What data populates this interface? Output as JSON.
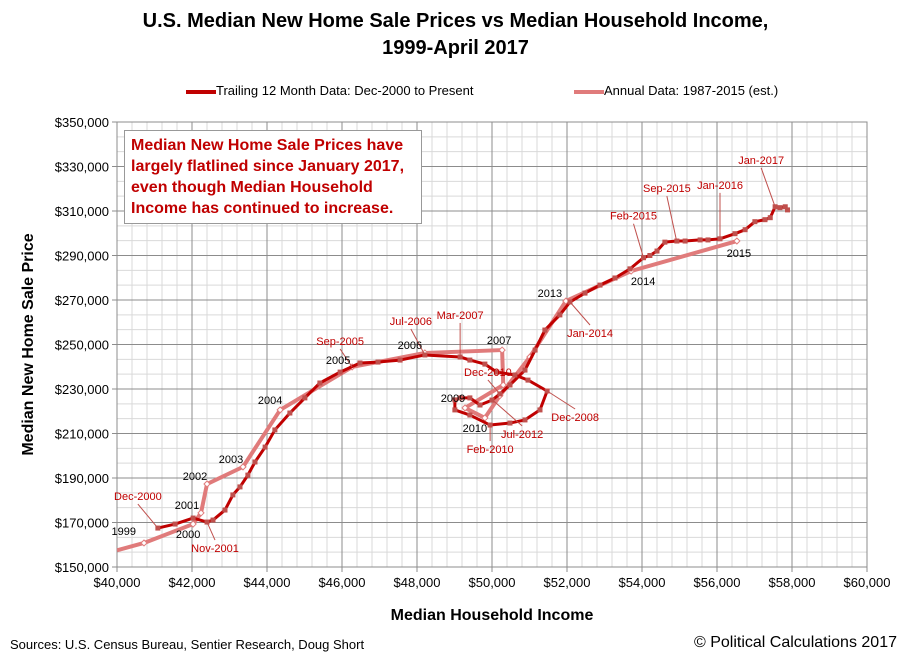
{
  "chart_data": {
    "type": "line",
    "title": "U.S. Median New Home Sale Prices vs Median Household Income, 1999-April 2017",
    "title_lines": [
      "U.S. Median New Home Sale Prices vs Median Household Income,",
      "1999-April 2017"
    ],
    "xlabel": "Median Household Income",
    "ylabel": "Median New Home Sale Price",
    "xlim": [
      40000,
      60000
    ],
    "ylim": [
      150000,
      350000
    ],
    "xticks": [
      "$40,000",
      "$42,000",
      "$44,000",
      "$46,000",
      "$48,000",
      "$50,000",
      "$52,000",
      "$54,000",
      "$56,000",
      "$58,000",
      "$60,000"
    ],
    "yticks": [
      "$150,000",
      "$170,000",
      "$190,000",
      "$210,000",
      "$230,000",
      "$250,000",
      "$270,000",
      "$290,000",
      "$310,000",
      "$330,000",
      "$350,000"
    ],
    "grid": true,
    "legend_position": "top",
    "series": [
      {
        "name": "Trailing 12 Month Data: Dec-2000 to Present",
        "color": "#c00000",
        "x": [
          41090,
          41550,
          42030,
          42400,
          42560,
          42880,
          43090,
          43280,
          43490,
          43680,
          43950,
          44210,
          44610,
          45010,
          45410,
          45950,
          46480,
          46960,
          47550,
          48210,
          49150,
          49410,
          49810,
          50130,
          50610,
          50960,
          51470,
          51280,
          50880,
          50480,
          49950,
          49410,
          49010,
          49010,
          49150,
          49410,
          49680,
          50000,
          50210,
          50480,
          50880,
          51150,
          51410,
          51810,
          52080,
          52480,
          52880,
          53280,
          53680,
          54040,
          54210,
          54400,
          54610,
          54930,
          55150,
          55550,
          55760,
          56080,
          56480,
          56750,
          57010,
          57280,
          57420,
          57550,
          57680,
          57820,
          57880
        ],
        "y": [
          167500,
          169300,
          172000,
          170200,
          171100,
          175600,
          182400,
          186000,
          191300,
          197200,
          203900,
          211600,
          219200,
          226000,
          232700,
          237600,
          241700,
          242100,
          243000,
          245300,
          244400,
          243000,
          241200,
          237600,
          236300,
          234000,
          229100,
          220600,
          216100,
          214700,
          213800,
          218300,
          220600,
          225100,
          226000,
          226000,
          222800,
          225000,
          227800,
          231800,
          238500,
          247500,
          256500,
          263300,
          269100,
          273100,
          276700,
          279900,
          284000,
          289000,
          290000,
          292000,
          296000,
          296500,
          296500,
          297000,
          297000,
          297500,
          299800,
          301600,
          305200,
          306100,
          307000,
          311900,
          311500,
          311900,
          310500
        ]
      },
      {
        "name": "Annual Data: 1987-2015 (est.)",
        "color": "#e07b7b",
        "x": [
          40000,
          40720,
          42030,
          42240,
          42400,
          43360,
          44350,
          46270,
          48210,
          50270,
          50300,
          49280,
          49810,
          50210,
          51010,
          51970,
          53710,
          56530
        ],
        "y": [
          157500,
          160800,
          169300,
          174300,
          187300,
          195000,
          220600,
          239900,
          246200,
          247500,
          231800,
          221500,
          217000,
          227000,
          244400,
          269500,
          283000,
          296500
        ]
      }
    ],
    "annotations": [
      {
        "text": "Dec-2000",
        "x": 41090,
        "y": 167500,
        "color": "#c00000"
      },
      {
        "text": "Nov-2001",
        "x": 42400,
        "y": 170200,
        "color": "#c00000"
      },
      {
        "text": "Sep-2005",
        "x": 46270,
        "y": 239900,
        "color": "#c00000"
      },
      {
        "text": "Jul-2006",
        "x": 48210,
        "y": 245300,
        "color": "#c00000"
      },
      {
        "text": "Mar-2007",
        "x": 49150,
        "y": 244400,
        "color": "#c00000"
      },
      {
        "text": "Dec-2008",
        "x": 51470,
        "y": 229100,
        "color": "#c00000"
      },
      {
        "text": "Feb-2010",
        "x": 49950,
        "y": 213800,
        "color": "#c00000"
      },
      {
        "text": "Dec-2010",
        "x": 50210,
        "y": 227800,
        "color": "#c00000"
      },
      {
        "text": "Jul-2012",
        "x": 49950,
        "y": 226000,
        "color": "#c00000"
      },
      {
        "text": "Jan-2014",
        "x": 52080,
        "y": 269100,
        "color": "#c00000"
      },
      {
        "text": "Feb-2015",
        "x": 54040,
        "y": 289000,
        "color": "#c00000"
      },
      {
        "text": "Sep-2015",
        "x": 54930,
        "y": 296000,
        "color": "#c00000"
      },
      {
        "text": "Jan-2016",
        "x": 56080,
        "y": 297500,
        "color": "#c00000"
      },
      {
        "text": "Jan-2017",
        "x": 57550,
        "y": 311900,
        "color": "#c00000"
      },
      {
        "text": "1999",
        "x": 40720,
        "y": 160800,
        "color": "#000000"
      },
      {
        "text": "2000",
        "x": 42030,
        "y": 169300,
        "color": "#000000"
      },
      {
        "text": "2001",
        "x": 42240,
        "y": 174300,
        "color": "#000000"
      },
      {
        "text": "2002",
        "x": 42400,
        "y": 187300,
        "color": "#000000"
      },
      {
        "text": "2003",
        "x": 43360,
        "y": 195000,
        "color": "#000000"
      },
      {
        "text": "2004",
        "x": 44350,
        "y": 220600,
        "color": "#000000"
      },
      {
        "text": "2005",
        "x": 46270,
        "y": 239900,
        "color": "#000000"
      },
      {
        "text": "2006",
        "x": 48210,
        "y": 246200,
        "color": "#000000"
      },
      {
        "text": "2007",
        "x": 50270,
        "y": 247500,
        "color": "#000000"
      },
      {
        "text": "2009",
        "x": 49280,
        "y": 221500,
        "color": "#000000"
      },
      {
        "text": "2010",
        "x": 49810,
        "y": 217000,
        "color": "#000000"
      },
      {
        "text": "2013",
        "x": 51970,
        "y": 269500,
        "color": "#000000"
      },
      {
        "text": "2014",
        "x": 53710,
        "y": 283000,
        "color": "#000000"
      },
      {
        "text": "2015",
        "x": 56530,
        "y": 296500,
        "color": "#000000"
      }
    ],
    "note": "Median New Home Sale Prices have largely flatlined since January 2017, even though Median Household Income has continued to increase."
  },
  "footer": {
    "sources": "Sources: U.S. Census Bureau, Sentier Research, Doug Short",
    "copyright": "© Political Calculations 2017"
  }
}
